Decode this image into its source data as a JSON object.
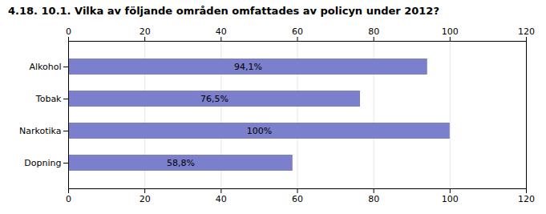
{
  "chart_data": {
    "type": "bar",
    "orientation": "horizontal",
    "title": "4.18. 10.1. Vilka av följande områden omfattades av policyn under 2012?",
    "categories": [
      "Alkohol",
      "Tobak",
      "Narkotika",
      "Dopning"
    ],
    "values": [
      94.1,
      76.5,
      100.0,
      58.8
    ],
    "value_labels": [
      "94,1%",
      "76,5%",
      "100%",
      "58,8%"
    ],
    "data_labels": true,
    "color": "#7b7fcc",
    "xlim": [
      0,
      120
    ],
    "xticks": [
      0,
      20,
      40,
      60,
      80,
      100,
      120
    ],
    "grid": true
  }
}
